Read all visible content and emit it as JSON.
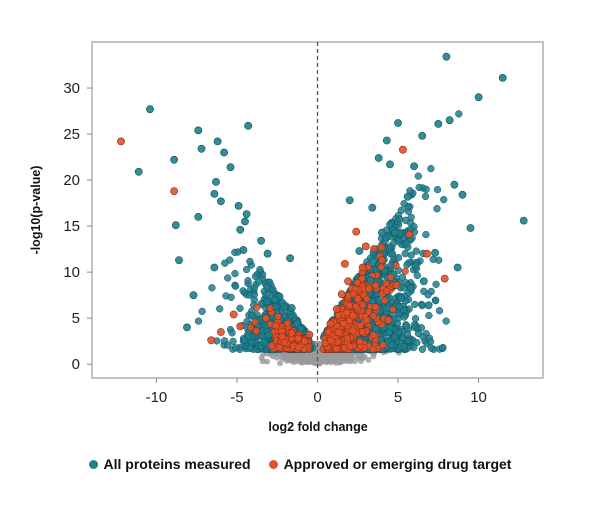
{
  "chart_data": {
    "type": "scatter",
    "title": "",
    "xlabel": "log2 fold change",
    "ylabel": "-log10(p-value)",
    "xlim": [
      -14,
      14
    ],
    "ylim": [
      -1.5,
      35
    ],
    "xticks": [
      -10,
      -5,
      0,
      5,
      10
    ],
    "yticks": [
      0,
      5,
      10,
      15,
      20,
      25,
      30
    ],
    "xtick_labels": [
      "-10",
      "-5",
      "0",
      "5",
      "10"
    ],
    "ytick_labels": [
      "0",
      "5",
      "10",
      "15",
      "20",
      "25",
      "30"
    ],
    "vertical_reference_line": 0,
    "grid": false,
    "legend_position": "bottom-center",
    "series": [
      {
        "name": "All proteins measured",
        "color": "#1f7f8e",
        "x": [
          -10.4,
          -11.1,
          -8.8,
          -7.4,
          -7.2,
          -6.2,
          -5.8,
          -6.4,
          -6.0,
          -4.3,
          -5.4,
          -6.3,
          -7.4,
          -4.9,
          -4.4,
          -8.9,
          -8.1,
          -8.6,
          -4.8,
          -4.6,
          -4.5,
          -6.4,
          -7.7,
          -3.5,
          -3.1,
          -1.6,
          -1.7,
          8.0,
          10.0,
          11.5,
          12.8,
          7.5,
          6.5,
          4.3,
          5.0,
          3.8,
          2.0,
          6.0,
          8.2,
          8.5,
          9.0,
          9.5,
          8.7,
          7.3,
          6.6,
          5.8,
          6.9,
          5.2,
          4.8,
          3.4,
          2.6,
          3.3,
          4.0,
          5.6,
          4.5
        ],
        "y": [
          27.7,
          20.9,
          15.1,
          25.4,
          23.4,
          24.2,
          23.0,
          18.5,
          17.7,
          25.9,
          21.4,
          19.8,
          16.0,
          17.2,
          16.3,
          22.2,
          4.0,
          11.3,
          14.6,
          12.4,
          15.5,
          10.5,
          7.5,
          13.4,
          12.0,
          6.1,
          11.5,
          33.4,
          29.0,
          31.1,
          15.6,
          26.1,
          24.8,
          24.3,
          26.2,
          22.4,
          17.8,
          21.5,
          26.5,
          19.5,
          18.4,
          14.8,
          10.5,
          12.1,
          9.0,
          8.3,
          6.4,
          7.2,
          14.3,
          17.0,
          12.3,
          9.1,
          14.3,
          18.2,
          21.7
        ]
      },
      {
        "name": "Approved or emerging drug target",
        "color": "#e0522a",
        "x": [
          -12.2,
          -8.9,
          -6.6,
          -6.0,
          -5.2,
          -4.8,
          -3.8,
          -3.2,
          -2.6,
          -2.2,
          -1.6,
          -1.2,
          -0.8,
          -0.5,
          0.8,
          1.2,
          1.5,
          1.9,
          2.2,
          2.5,
          2.8,
          3.2,
          3.6,
          4.0,
          4.4,
          5.3,
          5.7,
          6.8,
          7.9,
          3.0,
          2.4,
          1.7,
          4.9
        ],
        "y": [
          24.2,
          18.8,
          2.6,
          3.5,
          5.4,
          4.1,
          3.6,
          5.0,
          4.2,
          3.0,
          3.4,
          2.8,
          2.5,
          3.2,
          4.4,
          6.0,
          7.6,
          9.0,
          5.3,
          7.1,
          10.5,
          8.2,
          6.2,
          11.3,
          4.8,
          23.3,
          14.1,
          12.0,
          9.3,
          12.8,
          14.4,
          10.9,
          8.6
        ]
      }
    ]
  }
}
